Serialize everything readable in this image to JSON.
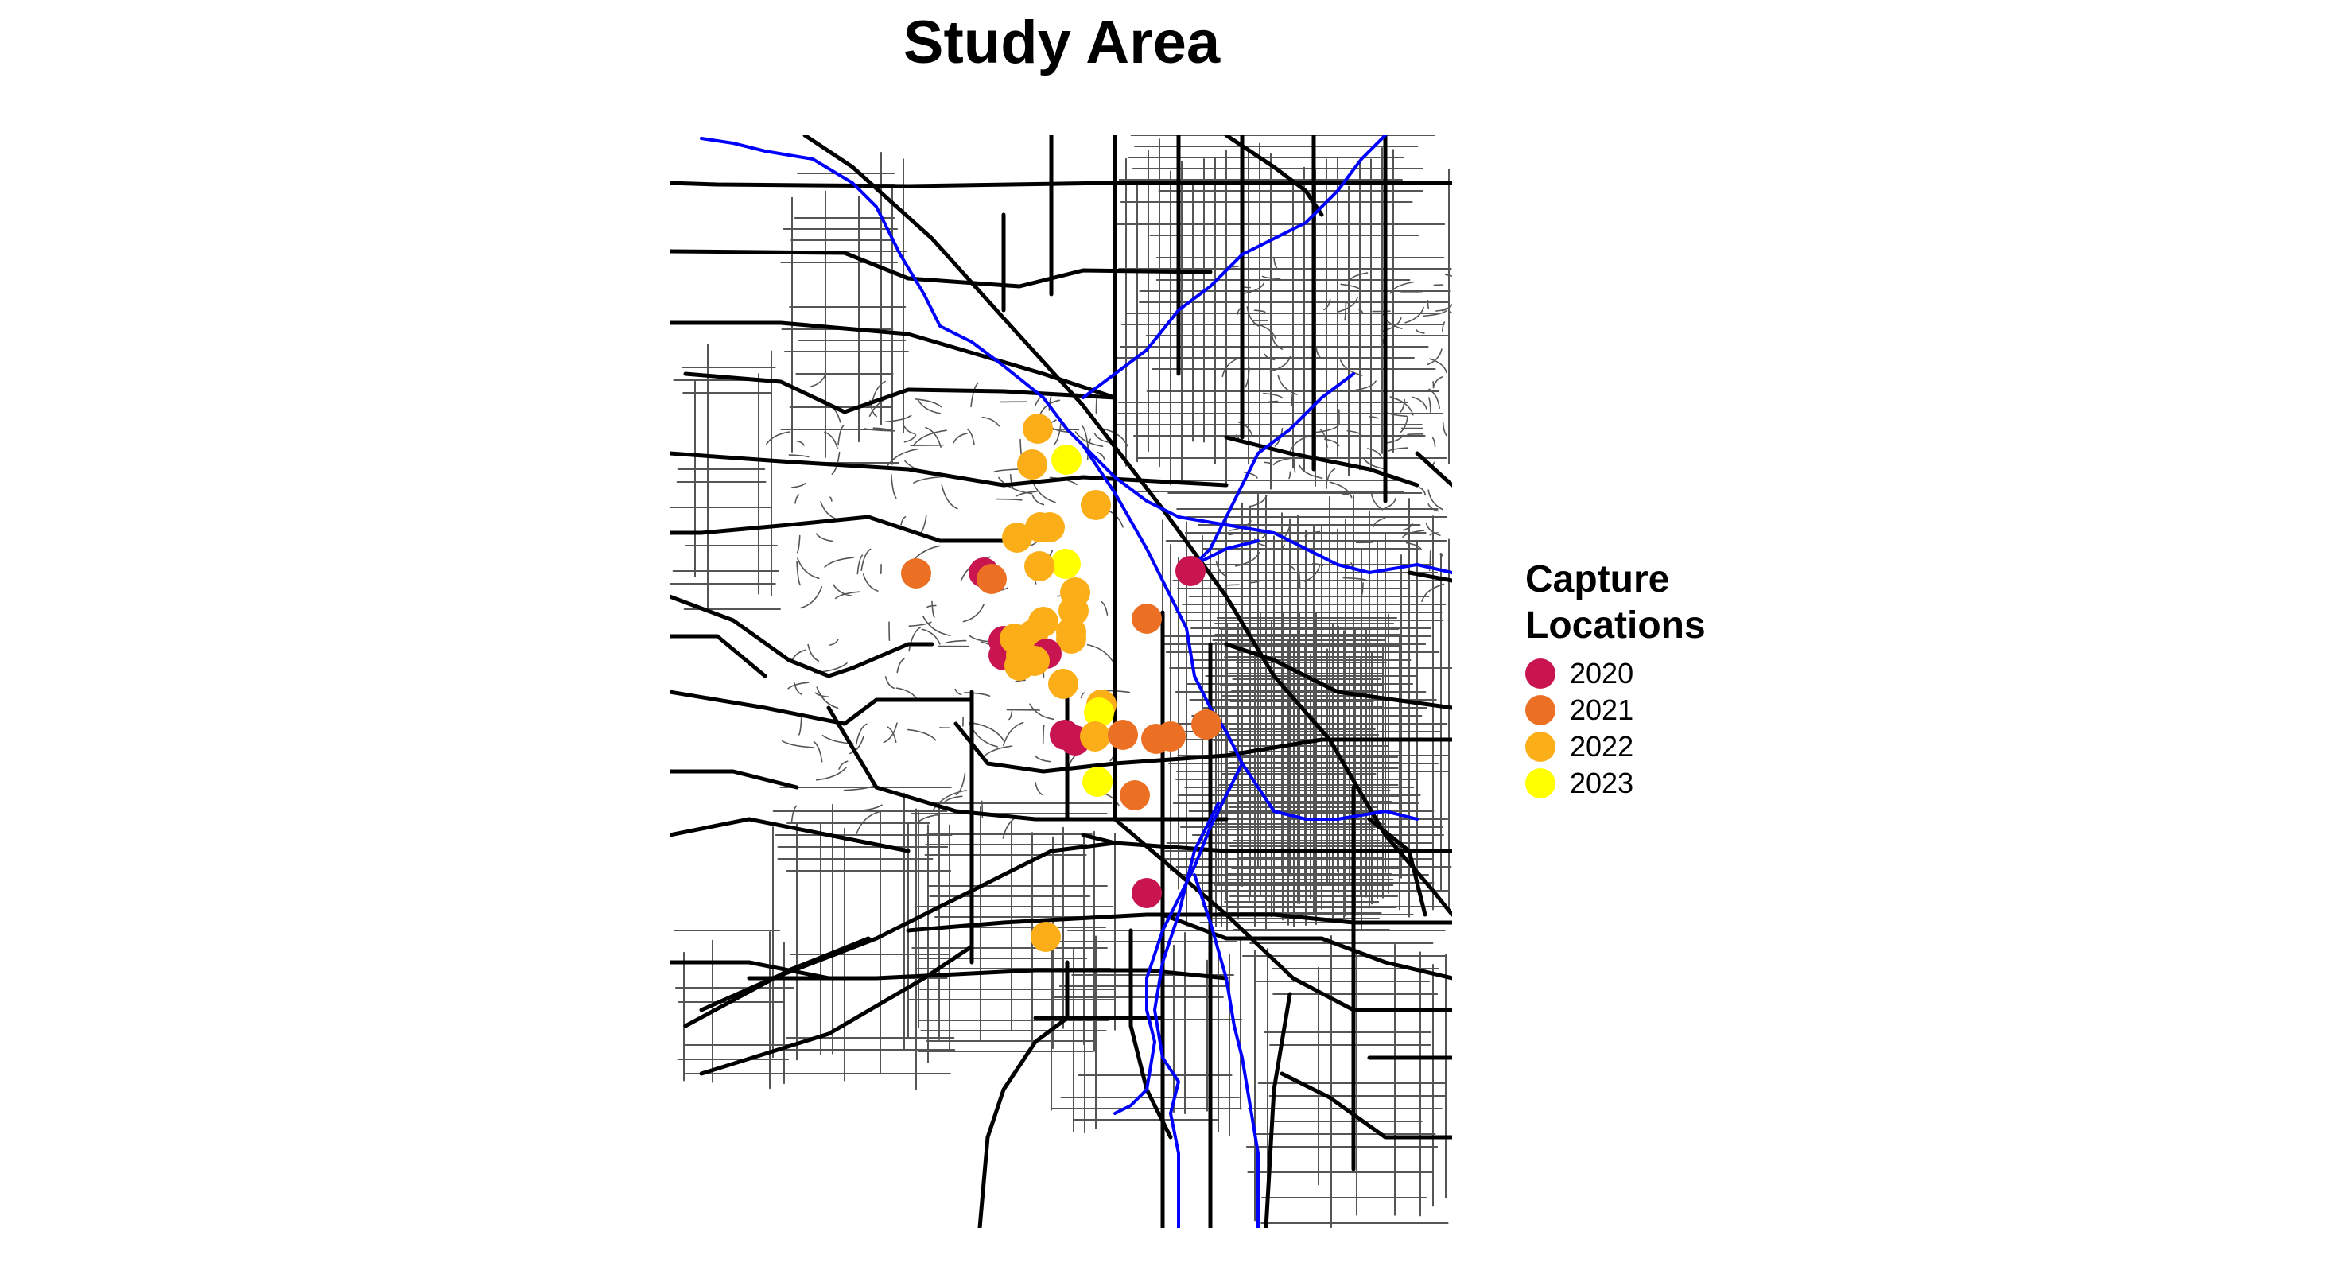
{
  "title": "Study Area",
  "legend": {
    "title_line1": "Capture",
    "title_line2": "Locations",
    "items": [
      {
        "label": "2020",
        "color": "#c8144f"
      },
      {
        "label": "2021",
        "color": "#eb7024"
      },
      {
        "label": "2022",
        "color": "#fbae17"
      },
      {
        "label": "2023",
        "color": "#ffff00"
      }
    ]
  },
  "map": {
    "background": "#ffffff",
    "road_color": "#000000",
    "minor_road_color": "#555555",
    "river_color": "#0000ff"
  }
}
